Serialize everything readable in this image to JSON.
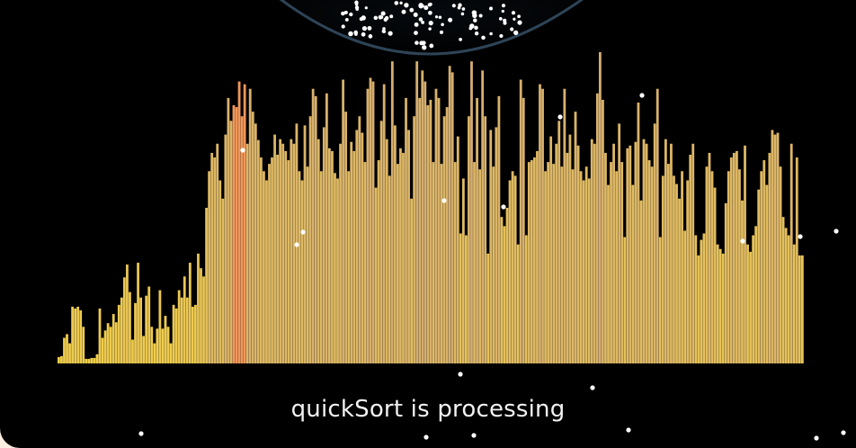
{
  "status": {
    "text": "quickSort is processing"
  },
  "colors": {
    "background": "#000000",
    "page_edge": "#fbeee0",
    "bowl_stroke": "#2e4457",
    "bar_low": "#f2d04a",
    "bar_high": "#d4ad72",
    "bar_active": "#f0975a",
    "particle": "#ffffff"
  },
  "chart_data": {
    "type": "bar",
    "algorithm": "quickSort",
    "values": [
      7,
      8,
      28,
      32,
      22,
      62,
      60,
      62,
      58,
      40,
      5,
      5,
      6,
      6,
      10,
      60,
      28,
      36,
      44,
      40,
      54,
      45,
      64,
      72,
      94,
      108,
      78,
      26,
      66,
      110,
      72,
      30,
      74,
      84,
      40,
      22,
      38,
      80,
      38,
      52,
      40,
      22,
      64,
      60,
      80,
      72,
      95,
      72,
      110,
      62,
      64,
      120,
      104,
      95,
      170,
      210,
      230,
      225,
      240,
      200,
      180,
      250,
      290,
      265,
      282,
      280,
      308,
      270,
      305,
      240,
      300,
      275,
      262,
      244,
      225,
      210,
      200,
      218,
      225,
      250,
      228,
      245,
      240,
      232,
      222,
      245,
      240,
      262,
      210,
      200,
      260,
      215,
      270,
      300,
      292,
      245,
      210,
      258,
      295,
      235,
      232,
      208,
      202,
      240,
      310,
      275,
      210,
      242,
      232,
      255,
      270,
      252,
      220,
      300,
      312,
      308,
      192,
      222,
      265,
      305,
      245,
      205,
      330,
      260,
      218,
      235,
      230,
      290,
      255,
      180,
      270,
      330,
      290,
      320,
      308,
      282,
      288,
      220,
      300,
      290,
      218,
      270,
      280,
      325,
      318,
      220,
      248,
      142,
      202,
      140,
      270,
      330,
      220,
      290,
      212,
      320,
      270,
      120,
      255,
      215,
      258,
      292,
      160,
      150,
      170,
      200,
      210,
      205,
      130,
      310,
      290,
      140,
      220,
      222,
      225,
      232,
      305,
      300,
      210,
      220,
      248,
      218,
      240,
      265,
      215,
      300,
      230,
      250,
      212,
      275,
      238,
      210,
      200,
      215,
      202,
      245,
      240,
      295,
      340,
      288,
      230,
      195,
      220,
      240,
      210,
      262,
      220,
      138,
      235,
      238,
      195,
      242,
      285,
      178,
      245,
      240,
      222,
      215,
      262,
      300,
      138,
      205,
      245,
      218,
      240,
      205,
      196,
      180,
      210,
      145,
      200,
      228,
      240,
      140,
      118,
      135,
      142,
      215,
      230,
      210,
      192,
      130,
      125,
      120,
      175,
      210,
      225,
      230,
      232,
      212,
      178,
      238,
      130,
      122,
      140,
      150,
      190,
      210,
      222,
      195,
      230,
      255,
      250,
      252,
      215,
      160,
      148,
      140,
      240,
      130,
      225,
      118,
      118
    ],
    "active_indices": [
      64,
      65,
      66,
      67,
      68
    ]
  }
}
